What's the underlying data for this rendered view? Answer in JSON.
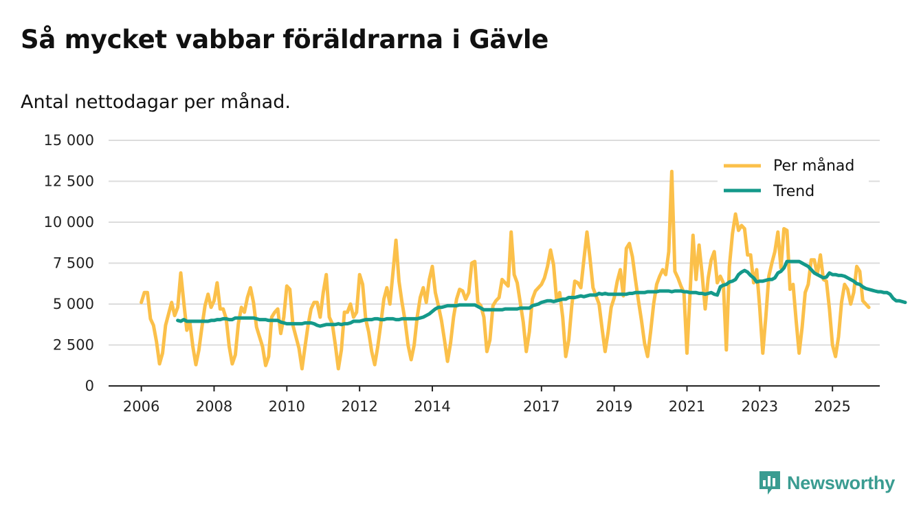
{
  "title": "Så mycket vabbar föräldrarna i Gävle",
  "subtitle": "Antal nettodagar per månad.",
  "brand": {
    "name": "Newsworthy"
  },
  "colors": {
    "per_month": "#FBC04A",
    "trend": "#14998A",
    "grid": "#dcdcdc",
    "axis": "#222222"
  },
  "chart_data": {
    "type": "line",
    "title": "Så mycket vabbar föräldrarna i Gävle",
    "subtitle": "Antal nettodagar per månad.",
    "xlabel": "",
    "ylabel": "",
    "x_start": "2006-01",
    "xlim": [
      2005.1,
      2026.3
    ],
    "ylim": [
      0,
      15000
    ],
    "x_ticks": [
      2006,
      2008,
      2010,
      2012,
      2014,
      2017,
      2019,
      2021,
      2023,
      2025
    ],
    "y_ticks": [
      0,
      2500,
      5000,
      7500,
      10000,
      12500,
      15000
    ],
    "y_tick_labels": [
      "0",
      "2 500",
      "5 000",
      "7 500",
      "10 000",
      "12 500",
      "15 000"
    ],
    "grid": true,
    "legend_position": "top-right",
    "series": [
      {
        "name": "Per månad",
        "trend_start": null,
        "values": [
          5100,
          5700,
          5700,
          4100,
          3700,
          2700,
          1350,
          2000,
          3700,
          4400,
          5100,
          4300,
          4800,
          6900,
          5100,
          3400,
          3900,
          2400,
          1300,
          2200,
          3600,
          4900,
          5600,
          4800,
          5200,
          6300,
          4700,
          4700,
          4100,
          2400,
          1350,
          1900,
          3800,
          4800,
          4500,
          5400,
          6000,
          5100,
          3600,
          3000,
          2400,
          1250,
          1800,
          4200,
          4500,
          4700,
          3200,
          4200,
          6100,
          5900,
          3700,
          3000,
          2300,
          1050,
          2400,
          3700,
          4700,
          5100,
          5100,
          4200,
          5700,
          6800,
          4200,
          3800,
          2500,
          1050,
          2200,
          4500,
          4500,
          5000,
          4200,
          4500,
          6800,
          6200,
          4100,
          3300,
          2100,
          1300,
          2400,
          3800,
          5300,
          6000,
          5000,
          6900,
          8900,
          6400,
          5100,
          4000,
          2500,
          1600,
          2500,
          4200,
          5400,
          6000,
          5100,
          6500,
          7300,
          5700,
          4900,
          4000,
          2800,
          1500,
          2600,
          4200,
          5300,
          5900,
          5800,
          5300,
          5700,
          7500,
          7600,
          5100,
          4900,
          4200,
          2100,
          2800,
          4900,
          5200,
          5400,
          6500,
          6300,
          6100,
          9400,
          6800,
          6300,
          5100,
          3900,
          2100,
          3300,
          5300,
          5800,
          6000,
          6200,
          6600,
          7300,
          8300,
          7400,
          5200,
          5700,
          4200,
          1800,
          2800,
          4900,
          6400,
          6300,
          6000,
          7700,
          9400,
          7800,
          6000,
          5500,
          5000,
          3500,
          2100,
          3300,
          4800,
          5400,
          6400,
          7100,
          5500,
          8400,
          8700,
          7900,
          6500,
          5200,
          4000,
          2600,
          1800,
          3300,
          5000,
          6200,
          6700,
          7100,
          6800,
          8200,
          13100,
          7000,
          6600,
          6100,
          5700,
          2000,
          5600,
          9200,
          6500,
          8600,
          6800,
          4700,
          6600,
          7700,
          8200,
          6300,
          6700,
          6300,
          2200,
          7300,
          9300,
          10500,
          9500,
          9800,
          9600,
          8000,
          8000,
          6300,
          7100,
          4800,
          2000,
          4200,
          6700,
          7500,
          8200,
          9400,
          7200,
          9600,
          9500,
          5900,
          6200,
          4000,
          2000,
          3600,
          5700,
          6200,
          7700,
          7700,
          6800,
          8000,
          6500,
          6400,
          4700,
          2500,
          1800,
          3000,
          5100,
          6200,
          5900,
          5000,
          5700,
          7300,
          7000,
          5200,
          5000,
          4800
        ]
      },
      {
        "name": "Trend",
        "trend_start": "2007-01",
        "values": [
          4000,
          3950,
          4050,
          3950,
          3950,
          3950,
          3950,
          3950,
          3950,
          3950,
          3950,
          4000,
          4000,
          4050,
          4050,
          4100,
          4100,
          4050,
          4050,
          4150,
          4150,
          4150,
          4150,
          4150,
          4150,
          4150,
          4100,
          4050,
          4050,
          4050,
          4000,
          4000,
          4000,
          4000,
          3900,
          3850,
          3800,
          3800,
          3800,
          3800,
          3800,
          3800,
          3850,
          3850,
          3850,
          3800,
          3700,
          3650,
          3700,
          3750,
          3750,
          3750,
          3750,
          3800,
          3750,
          3800,
          3800,
          3850,
          3950,
          3950,
          3950,
          4000,
          4050,
          4050,
          4050,
          4100,
          4100,
          4050,
          4050,
          4100,
          4100,
          4100,
          4050,
          4050,
          4100,
          4100,
          4100,
          4100,
          4100,
          4100,
          4150,
          4200,
          4300,
          4400,
          4550,
          4700,
          4800,
          4800,
          4850,
          4900,
          4900,
          4900,
          4900,
          4950,
          4950,
          4950,
          4950,
          4950,
          4950,
          4850,
          4750,
          4650,
          4650,
          4650,
          4650,
          4650,
          4650,
          4650,
          4700,
          4700,
          4700,
          4700,
          4700,
          4750,
          4750,
          4750,
          4750,
          4900,
          4950,
          5000,
          5100,
          5150,
          5200,
          5200,
          5150,
          5200,
          5250,
          5300,
          5300,
          5400,
          5400,
          5400,
          5450,
          5500,
          5450,
          5500,
          5550,
          5550,
          5550,
          5650,
          5600,
          5650,
          5600,
          5600,
          5600,
          5600,
          5600,
          5600,
          5600,
          5650,
          5650,
          5700,
          5700,
          5700,
          5700,
          5750,
          5750,
          5750,
          5750,
          5800,
          5800,
          5800,
          5800,
          5750,
          5800,
          5800,
          5800,
          5750,
          5750,
          5700,
          5700,
          5700,
          5650,
          5650,
          5600,
          5650,
          5700,
          5600,
          5550,
          6050,
          6150,
          6200,
          6350,
          6400,
          6500,
          6800,
          6950,
          7050,
          6950,
          6750,
          6600,
          6350,
          6400,
          6400,
          6450,
          6500,
          6500,
          6600,
          6900,
          7000,
          7200,
          7600,
          7600,
          7600,
          7600,
          7600,
          7500,
          7400,
          7300,
          7100,
          6900,
          6800,
          6700,
          6600,
          6650,
          6900,
          6800,
          6800,
          6750,
          6750,
          6700,
          6600,
          6500,
          6400,
          6250,
          6200,
          6050,
          5950,
          5900,
          5850,
          5800,
          5750,
          5750,
          5700,
          5700,
          5600,
          5350,
          5200,
          5200,
          5150,
          5100
        ]
      }
    ]
  }
}
